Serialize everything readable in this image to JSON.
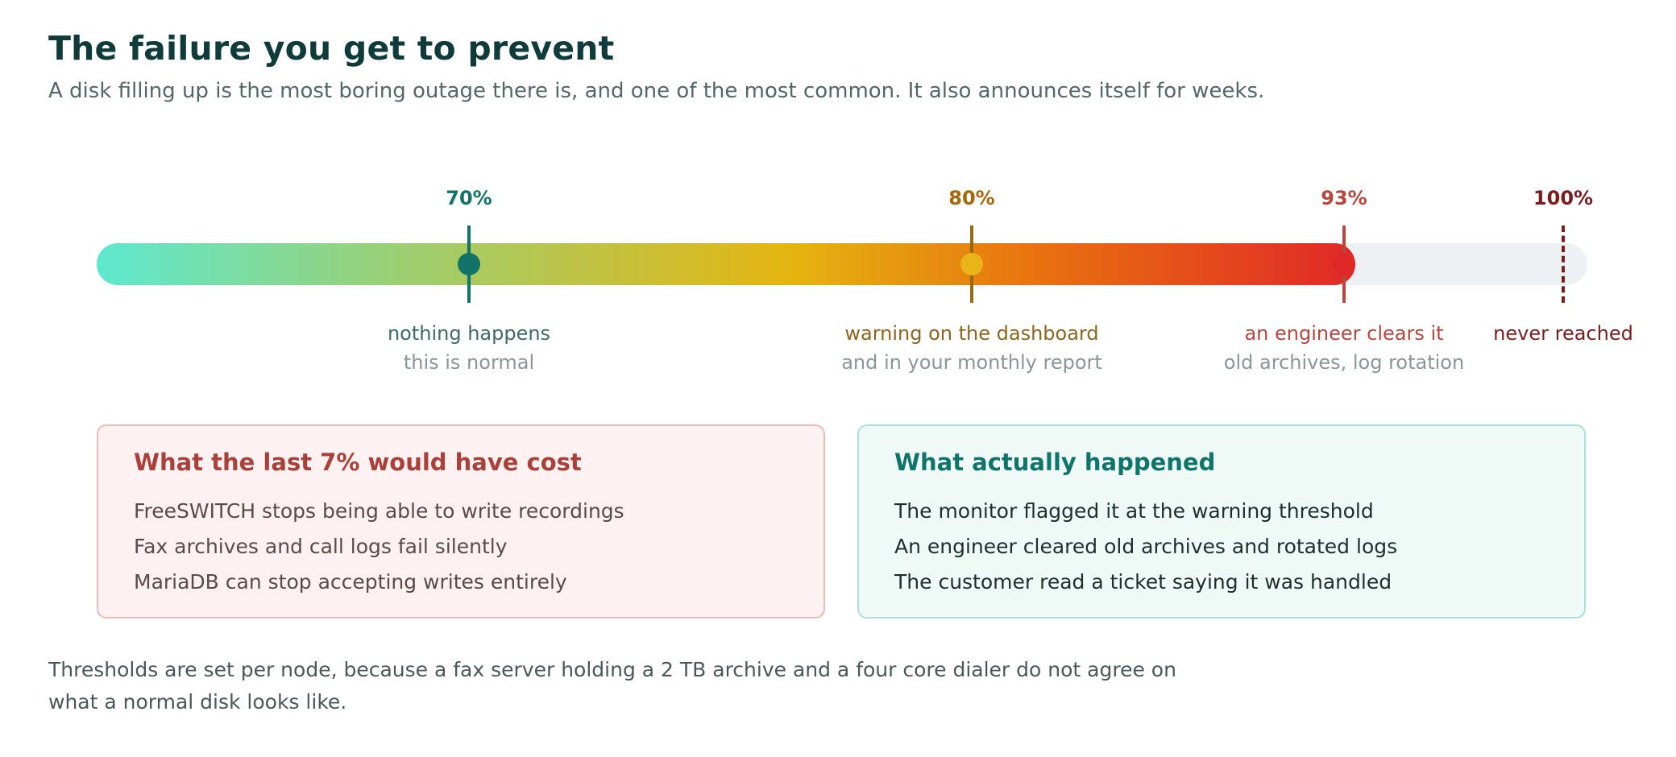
{
  "header": {
    "title": "The failure you get to prevent",
    "subtitle": "A disk filling up is the most boring outage there is, and one of the most common. It also announces itself for weeks."
  },
  "scale": {
    "fill_to_percent": 93,
    "markers": [
      {
        "value": 70,
        "label": "70%",
        "caption": "nothing happens",
        "detail": "this is normal",
        "color": "#127368"
      },
      {
        "value": 80,
        "label": "80%",
        "caption": "warning on the dashboard",
        "detail": "and in your monthly report",
        "color": "#a8660a"
      },
      {
        "value": 93,
        "label": "93%",
        "caption": "an engineer clears it",
        "detail": "old archives, log rotation",
        "color": "#b6473f"
      },
      {
        "value": 100,
        "label": "100%",
        "caption": "never reached",
        "color": "#7a1d1d"
      }
    ]
  },
  "cards": {
    "cost": {
      "title": "What the last 7% would have cost",
      "items": [
        "FreeSWITCH stops being able to write recordings",
        "Fax archives and call logs fail silently",
        "MariaDB can stop accepting writes entirely"
      ]
    },
    "actual": {
      "title": "What actually happened",
      "items": [
        "The monitor flagged it at the warning threshold",
        "An engineer cleared old archives and rotated logs",
        "The customer read a ticket saying it was handled"
      ]
    }
  },
  "footnote": "Thresholds are set per node, because a fax server holding a 2 TB archive and a four core dialer do not agree on what a normal disk looks like."
}
